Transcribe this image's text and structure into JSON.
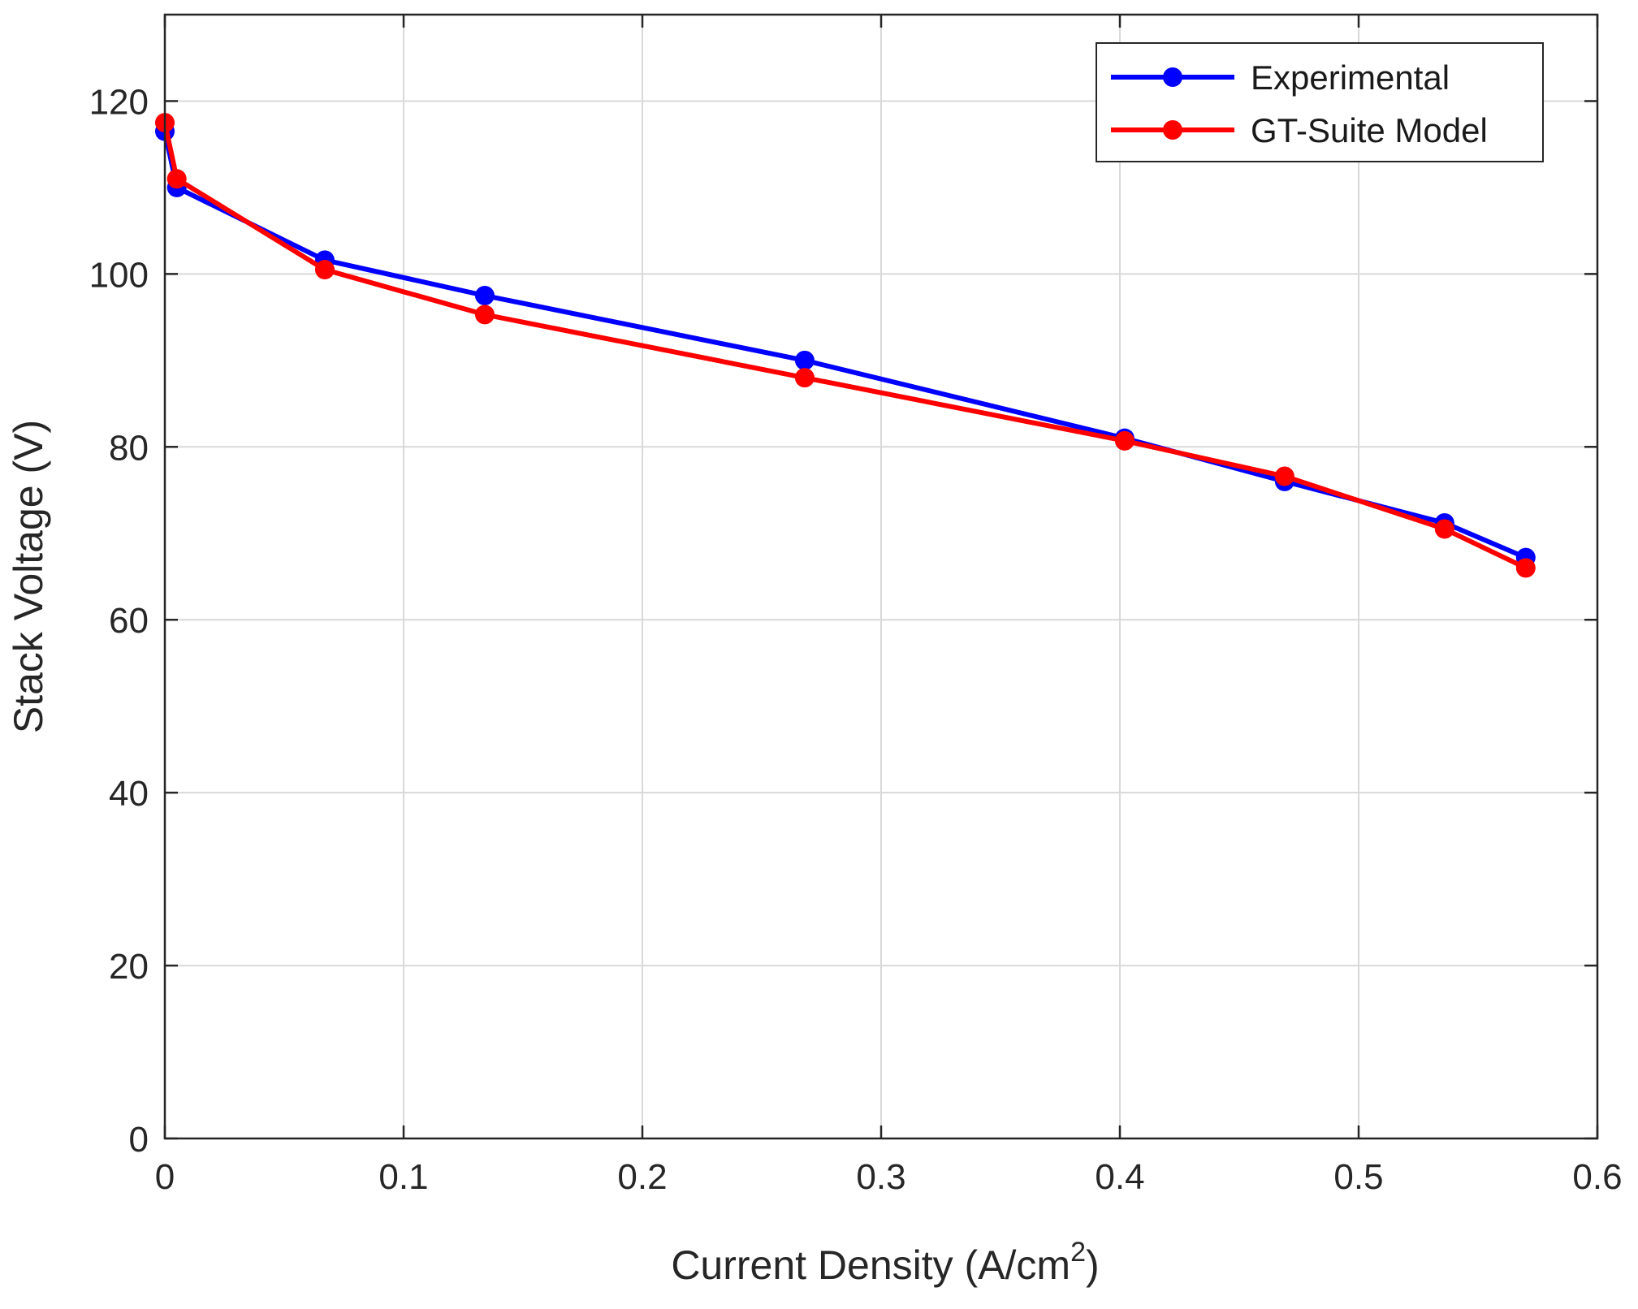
{
  "chart_data": {
    "type": "line",
    "xlabel": "Current Density (A/cm",
    "xlabel_superscript": "2",
    "xlabel_suffix": ")",
    "ylabel": "Stack Voltage (V)",
    "xlim": [
      0,
      0.6
    ],
    "ylim": [
      0,
      130
    ],
    "xticks": [
      0,
      0.1,
      0.2,
      0.3,
      0.4,
      0.5,
      0.6
    ],
    "xtick_labels": [
      "0",
      "0.1",
      "0.2",
      "0.3",
      "0.4",
      "0.5",
      "0.6"
    ],
    "yticks": [
      0,
      20,
      40,
      60,
      80,
      100,
      120
    ],
    "ytick_labels": [
      "0",
      "20",
      "40",
      "60",
      "80",
      "100",
      "120"
    ],
    "grid": true,
    "legend_position": "top-right",
    "series": [
      {
        "name": "Experimental",
        "color": "#0000ff",
        "x": [
          0,
          0.005,
          0.067,
          0.134,
          0.268,
          0.402,
          0.469,
          0.536,
          0.57
        ],
        "y": [
          116.5,
          110,
          101.6,
          97.5,
          90,
          81,
          76,
          71.2,
          67.2
        ]
      },
      {
        "name": "GT-Suite Model",
        "color": "#ff0000",
        "x": [
          0,
          0.005,
          0.067,
          0.134,
          0.268,
          0.402,
          0.469,
          0.536,
          0.57
        ],
        "y": [
          117.5,
          111,
          100.5,
          95.3,
          88,
          80.7,
          76.6,
          70.5,
          66
        ]
      }
    ]
  }
}
